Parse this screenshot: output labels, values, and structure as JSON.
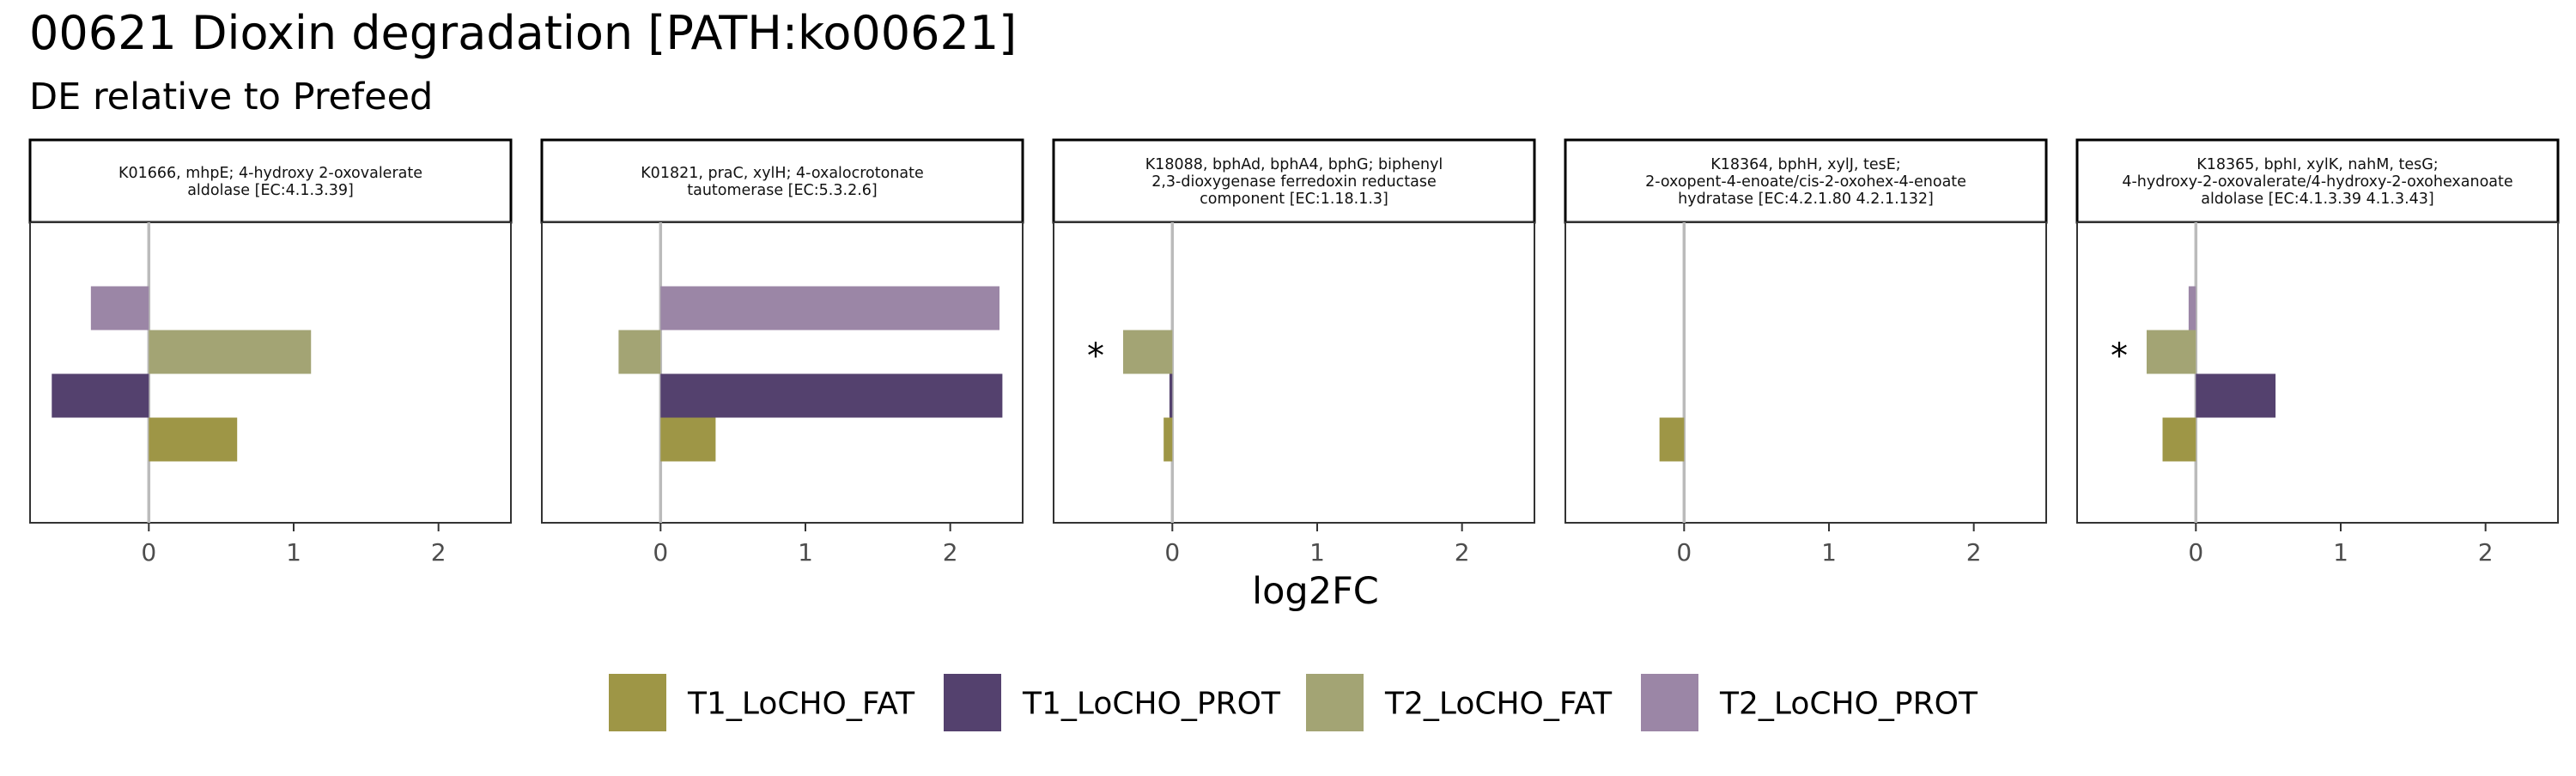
{
  "chart_data": {
    "type": "bar",
    "orientation": "horizontal",
    "title": "00621 Dioxin degradation [PATH:ko00621]",
    "subtitle": "DE relative to Prefeed",
    "xlabel": "log2FC",
    "xlim": [
      -0.82,
      2.5
    ],
    "xticks": [
      0,
      1,
      2
    ],
    "grid": false,
    "legend_position": "bottom",
    "series": [
      {
        "name": "T1_LoCHO_FAT",
        "color": "#9e9646"
      },
      {
        "name": "T1_LoCHO_PROT",
        "color": "#54416e"
      },
      {
        "name": "T2_LoCHO_FAT",
        "color": "#a3a474"
      },
      {
        "name": "T2_LoCHO_PROT",
        "color": "#9b86a6"
      }
    ],
    "panels": [
      {
        "label_lines": [
          "K01666, mhpE; 4-hydroxy 2-oxovalerate",
          "aldolase [EC:4.1.3.39]"
        ],
        "values": {
          "T1_LoCHO_FAT": 0.61,
          "T1_LoCHO_PROT": -0.67,
          "T2_LoCHO_FAT": 1.12,
          "T2_LoCHO_PROT": -0.4
        },
        "significance": {}
      },
      {
        "label_lines": [
          "K01821, praC, xylH; 4-oxalocrotonate",
          "tautomerase [EC:5.3.2.6]"
        ],
        "values": {
          "T1_LoCHO_FAT": 0.38,
          "T1_LoCHO_PROT": 2.36,
          "T2_LoCHO_FAT": -0.29,
          "T2_LoCHO_PROT": 2.34
        },
        "significance": {}
      },
      {
        "label_lines": [
          "K18088, bphAd, bphA4, bphG; biphenyl",
          "2,3-dioxygenase ferredoxin reductase",
          "component [EC:1.18.1.3]"
        ],
        "values": {
          "T1_LoCHO_FAT": -0.06,
          "T1_LoCHO_PROT": -0.02,
          "T2_LoCHO_FAT": -0.34,
          "T2_LoCHO_PROT": 0.0
        },
        "significance": {
          "T2_LoCHO_FAT": "*"
        }
      },
      {
        "label_lines": [
          "K18364, bphH, xylJ, tesE;",
          "2-oxopent-4-enoate/cis-2-oxohex-4-enoate",
          "hydratase [EC:4.2.1.80 4.2.1.132]"
        ],
        "values": {
          "T1_LoCHO_FAT": -0.17,
          "T1_LoCHO_PROT": 0.0,
          "T2_LoCHO_FAT": 0.0,
          "T2_LoCHO_PROT": 0.0
        },
        "significance": {}
      },
      {
        "label_lines": [
          "K18365, bphI, xylK, nahM, tesG;",
          "4-hydroxy-2-oxovalerate/4-hydroxy-2-oxohexanoate",
          "aldolase [EC:4.1.3.39 4.1.3.43]"
        ],
        "values": {
          "T1_LoCHO_FAT": -0.23,
          "T1_LoCHO_PROT": 0.55,
          "T2_LoCHO_FAT": -0.34,
          "T2_LoCHO_PROT": -0.05
        },
        "significance": {
          "T2_LoCHO_FAT": "*"
        }
      }
    ]
  }
}
